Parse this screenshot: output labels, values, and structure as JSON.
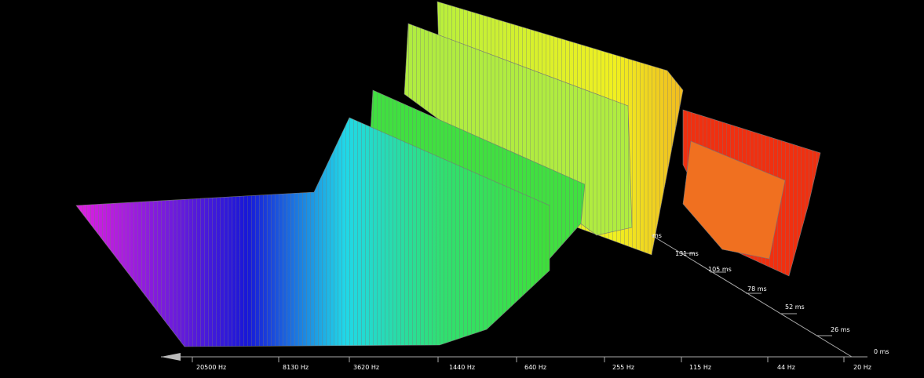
{
  "frequency_axis": {
    "labels": [
      "20500 Hz",
      "8130 Hz",
      "3620 Hz",
      "1440 Hz",
      "640 Hz",
      "255 Hz",
      "115 Hz",
      "44 Hz",
      "20 Hz"
    ]
  },
  "time_axis": {
    "labels": [
      "0 ms",
      "26 ms",
      "52 ms",
      "78 ms",
      "105 ms",
      "131 ms",
      "ms"
    ]
  }
}
